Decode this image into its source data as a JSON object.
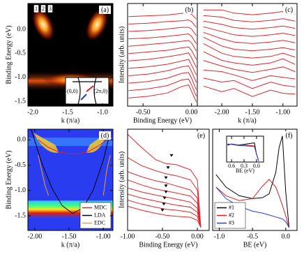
{
  "chart_data": [
    {
      "type": "heatmap",
      "label": "(a)",
      "xlabel": "k (π/a)",
      "ylabel": "Binding Energy (eV)",
      "xlim": [
        -2.07,
        -0.85
      ],
      "ylim": [
        -1.6,
        0.54
      ],
      "xticks": [
        {
          "value": -2.0,
          "label": "-2.0"
        },
        -1.5,
        {
          "value": -1.0,
          "label": "-1.0"
        }
      ],
      "yticks": [
        {
          "value": 0,
          "label": "0.0"
        },
        -0.5,
        {
          "value": -1.0,
          "label": "-1.0"
        },
        -1.5
      ],
      "cut_labels": [
        "1",
        "2",
        "3"
      ],
      "inset_labels": [
        "(0,0)",
        "(2π,0)"
      ]
    },
    {
      "type": "line",
      "label": "(b)",
      "xlabel": "Binding Energy (eV)",
      "ylabel": "Intensity (arb. units)",
      "color": "#e3262b",
      "xlim": [
        -0.66,
        0.06
      ],
      "ylim": [
        0,
        12.5
      ],
      "xticks": [
        {
          "value": -0.5,
          "label": "-0.50"
        },
        {
          "value": 0,
          "label": "0.00"
        }
      ],
      "x": [
        -0.65,
        -0.45,
        -0.25,
        -0.1,
        -0.03,
        0.0,
        0.05
      ],
      "series": [
        {
          "values": [
            1.0,
            1.2,
            1.6,
            2.4,
            2.6,
            1.8,
            0.5
          ]
        },
        {
          "values": [
            1.9,
            2.1,
            2.5,
            3.2,
            3.3,
            2.6,
            1.2
          ]
        },
        {
          "values": [
            2.8,
            3.0,
            3.4,
            4.0,
            4.1,
            3.4,
            2.0
          ]
        },
        {
          "values": [
            3.7,
            3.9,
            4.3,
            4.8,
            4.9,
            4.2,
            2.9
          ]
        },
        {
          "values": [
            4.6,
            4.8,
            5.1,
            5.5,
            5.7,
            5.0,
            3.8
          ]
        },
        {
          "values": [
            5.5,
            5.7,
            6.0,
            6.3,
            6.5,
            5.9,
            4.7
          ]
        },
        {
          "values": [
            6.4,
            6.6,
            6.8,
            7.1,
            7.2,
            6.8,
            5.7
          ]
        },
        {
          "values": [
            7.3,
            7.5,
            7.7,
            7.9,
            8.0,
            7.7,
            6.7
          ]
        },
        {
          "values": [
            8.2,
            8.3,
            8.5,
            8.7,
            8.8,
            8.5,
            7.6
          ]
        },
        {
          "values": [
            9.1,
            9.2,
            9.4,
            9.6,
            9.6,
            9.4,
            8.6
          ]
        },
        {
          "values": [
            10.0,
            10.1,
            10.3,
            10.4,
            10.5,
            10.3,
            9.6
          ]
        },
        {
          "values": [
            10.9,
            11.0,
            11.1,
            11.3,
            11.3,
            11.2,
            10.6
          ]
        }
      ]
    },
    {
      "type": "line",
      "label": "(c)",
      "xlabel": "k (π/a)",
      "color": "#e3262b",
      "xlim": [
        -2.4,
        -0.77
      ],
      "ylim": [
        0,
        12.8
      ],
      "xticks": [
        {
          "value": -2.0,
          "label": "-2.00"
        },
        {
          "value": -1.5,
          "label": "-1.50"
        },
        {
          "value": -1.0,
          "label": "-1.00"
        }
      ],
      "x": [
        -2.3,
        -2.0,
        -1.8,
        -1.5,
        -1.2,
        -1.0,
        -0.8
      ],
      "series": [
        {
          "values": [
            2.5,
            1.8,
            2.2,
            1.2,
            2.0,
            1.6,
            1.5
          ]
        },
        {
          "values": [
            3.5,
            3.0,
            3.2,
            2.2,
            3.0,
            2.6,
            2.4
          ]
        },
        {
          "values": [
            4.5,
            4.3,
            3.9,
            3.2,
            3.8,
            3.6,
            3.4
          ]
        },
        {
          "values": [
            5.7,
            5.0,
            4.6,
            4.2,
            4.6,
            4.9,
            4.3
          ]
        },
        {
          "values": [
            6.8,
            5.7,
            5.4,
            5.1,
            5.4,
            5.9,
            5.2
          ]
        },
        {
          "values": [
            7.8,
            6.6,
            6.2,
            6.0,
            6.2,
            6.6,
            6.1
          ]
        },
        {
          "values": [
            8.6,
            7.5,
            7.1,
            6.9,
            7.1,
            7.3,
            7.0
          ]
        },
        {
          "values": [
            9.2,
            8.4,
            8.0,
            7.8,
            8.0,
            8.2,
            7.9
          ]
        },
        {
          "values": [
            9.9,
            9.3,
            8.9,
            8.7,
            8.9,
            9.1,
            8.8
          ]
        },
        {
          "values": [
            10.6,
            10.2,
            9.8,
            9.6,
            9.8,
            10.0,
            9.7
          ]
        },
        {
          "values": [
            11.3,
            11.1,
            10.7,
            10.5,
            10.7,
            10.9,
            10.6
          ]
        },
        {
          "values": [
            12.0,
            12.0,
            11.6,
            11.4,
            11.6,
            11.8,
            11.5
          ]
        }
      ]
    },
    {
      "type": "line",
      "label": "(d)",
      "xlabel": "k (π/a)",
      "ylabel": "Binding Energy (eV)",
      "legend": "lower right",
      "xlim": [
        -2.1,
        -0.86
      ],
      "ylim": [
        -1.79,
        0.21
      ],
      "xticks": [
        {
          "value": -2.0,
          "label": "-2.00"
        },
        {
          "value": -1.5,
          "label": "-1.50"
        },
        {
          "value": -1.0,
          "label": "-1.00"
        }
      ],
      "yticks": [
        {
          "value": 0,
          "label": "0.0"
        },
        -0.5,
        {
          "value": -1.0,
          "label": "-1.0"
        },
        -1.5
      ],
      "series": [
        {
          "name": "MDC",
          "color": "#e02020",
          "x": [
            -1.95,
            -1.8,
            -1.65,
            -1.5,
            -1.35,
            -1.2,
            -1.05,
            -0.95
          ],
          "values": [
            0.0,
            -0.15,
            -0.24,
            -0.27,
            -0.27,
            -0.22,
            -0.1,
            0.0
          ]
        },
        {
          "name": "LDA",
          "color": "#000000",
          "x": [
            -2.05,
            -1.9,
            -1.75,
            -1.6,
            -1.45,
            -1.3,
            -1.15,
            -1.0,
            -0.9
          ],
          "values": [
            0.2,
            -0.45,
            -0.95,
            -1.3,
            -1.45,
            -1.35,
            -1.0,
            -0.4,
            0.15
          ]
        },
        {
          "name": "EDC",
          "color": "#f0a030",
          "x": [
            -1.95,
            -1.9,
            -1.85,
            -1.8,
            -1.4,
            -1.0,
            -0.98,
            -0.95,
            -0.9
          ],
          "values": [
            -0.3,
            -0.6,
            -0.9,
            -1.1,
            null,
            -1.1,
            -0.9,
            -0.6,
            -0.3
          ]
        }
      ]
    },
    {
      "type": "line",
      "label": "(e)",
      "xlabel": "Binding Energy (eV)",
      "ylabel": "Intensity (arb. units)",
      "color": "#e3262b",
      "xlim": [
        -1.0,
        0.17
      ],
      "ylim": [
        0,
        10
      ],
      "xticks": [
        {
          "value": -1.0,
          "label": "-1.00"
        },
        {
          "value": -0.5,
          "label": "-0.50"
        },
        {
          "value": 0,
          "label": "0.00"
        }
      ],
      "x": [
        -1.0,
        -0.8,
        -0.6,
        -0.45,
        -0.3,
        -0.1,
        0.0,
        0.05
      ],
      "series": [
        {
          "values": [
            2.4,
            2.0,
            1.7,
            1.5,
            1.4,
            1.3,
            1.0,
            0.3
          ]
        },
        {
          "values": [
            3.0,
            2.6,
            2.3,
            2.1,
            2.0,
            1.8,
            1.4,
            0.3
          ]
        },
        {
          "values": [
            3.6,
            3.2,
            2.9,
            2.7,
            2.5,
            2.3,
            1.8,
            0.3
          ]
        },
        {
          "values": [
            4.2,
            3.8,
            3.5,
            3.3,
            3.1,
            2.8,
            2.2,
            0.3
          ]
        },
        {
          "values": [
            5.0,
            4.5,
            4.1,
            3.9,
            3.7,
            3.4,
            2.7,
            0.3
          ]
        },
        {
          "values": [
            5.8,
            5.3,
            4.9,
            4.7,
            4.4,
            4.0,
            3.2,
            0.3
          ]
        },
        {
          "values": [
            7.2,
            6.4,
            5.9,
            5.6,
            5.4,
            5.0,
            4.0,
            0.3
          ]
        },
        {
          "values": [
            9.5,
            8.2,
            7.0,
            6.6,
            6.5,
            6.0,
            5.0,
            0.3
          ]
        }
      ],
      "markers": {
        "x": [
          -0.37,
          -0.42,
          -0.45,
          -0.45,
          -0.45,
          -0.47,
          -0.48,
          -0.5
        ],
        "values": [
          7.4,
          6.2,
          5.2,
          4.4,
          3.8,
          3.2,
          2.6,
          2.0
        ]
      }
    },
    {
      "type": "line",
      "label": "(f)",
      "xlabel": "BE (eV)",
      "legend": "lower left",
      "xlim": [
        -1.1,
        0.17
      ],
      "ylim": [
        0,
        10.5
      ],
      "xticks": [
        {
          "value": -1.0,
          "label": "-1.0"
        },
        -0.5,
        {
          "value": 0,
          "label": "0.0"
        }
      ],
      "x": [
        -1.05,
        -0.9,
        -0.7,
        -0.5,
        -0.35,
        -0.25,
        -0.15,
        -0.1,
        -0.05,
        0.0,
        0.05
      ],
      "series": [
        {
          "name": "#1",
          "color": "#000000",
          "values": [
            5.8,
            4.5,
            3.6,
            3.3,
            3.4,
            3.8,
            6.0,
            8.6,
            9.8,
            4.0,
            0.3
          ]
        },
        {
          "name": "#2",
          "color": "#e02020",
          "values": [
            4.5,
            3.6,
            3.1,
            3.3,
            4.6,
            5.3,
            4.5,
            3.6,
            2.6,
            1.5,
            0.3
          ]
        },
        {
          "name": "#3",
          "color": "#2040e0",
          "values": [
            4.5,
            3.3,
            2.5,
            2.0,
            1.8,
            1.6,
            1.4,
            1.3,
            1.2,
            0.9,
            0.3
          ]
        }
      ]
    },
    {
      "type": "line",
      "xlabel": "BE (eV)",
      "xlim": [
        0.72,
        -0.17
      ],
      "ylim": [
        0,
        10
      ],
      "xticks": [
        0.6,
        0.3,
        {
          "value": 0,
          "label": "0.0"
        }
      ],
      "x": [
        0.7,
        0.6,
        0.45,
        0.3,
        0.15,
        0.05,
        0.0,
        -0.05
      ],
      "series": [
        {
          "color": "#000000",
          "values": [
            6.5,
            7.0,
            6.6,
            6.8,
            7.2,
            7.4,
            3.0,
            0.5
          ]
        },
        {
          "color": "#e02020",
          "values": [
            6.8,
            6.9,
            6.5,
            6.6,
            6.4,
            6.2,
            3.0,
            0.5
          ]
        },
        {
          "color": "#2040e0",
          "values": [
            7.0,
            6.8,
            6.4,
            6.3,
            6.1,
            6.0,
            3.0,
            0.5
          ]
        }
      ]
    }
  ]
}
